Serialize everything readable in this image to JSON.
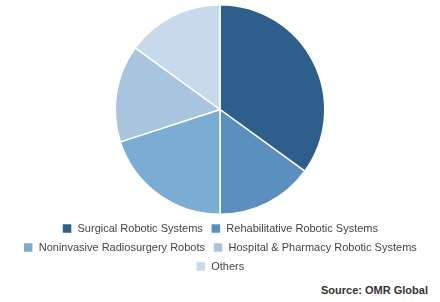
{
  "chart_data": {
    "type": "pie",
    "categories": [
      "Surgical Robotic Systems",
      "Rehabilitative Robotic Systems",
      "Noninvasive Radiosurgery Robots",
      "Hospital & Pharmacy Robotic Systems",
      "Others"
    ],
    "values": [
      35,
      15,
      20,
      15,
      15
    ],
    "colors": [
      "#2e5f8c",
      "#5b8fbf",
      "#7badd4",
      "#a8c4de",
      "#c8d9ec"
    ],
    "legend": "bottom",
    "annotations": [
      "Source: OMR Global"
    ]
  }
}
